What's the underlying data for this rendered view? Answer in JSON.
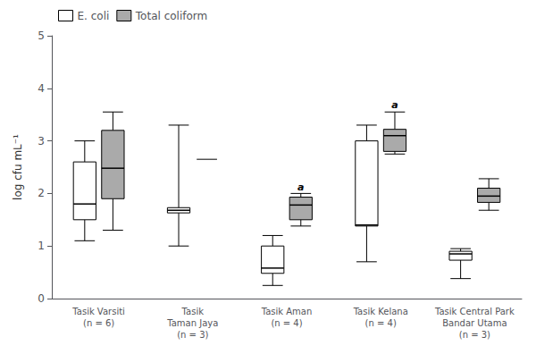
{
  "chart_data": {
    "type": "box",
    "categories": [
      "Tasik Varsiti\n(n = 6)",
      "Tasik\nTaman Jaya\n(n = 3)",
      "Tasik Aman\n(n = 4)",
      "Tasik Kelana\n(n = 4)",
      "Tasik Central Park\nBandar Utama\n(n = 3)"
    ],
    "ylabel": "log cfu mL⁻¹",
    "ylim": [
      0,
      5
    ],
    "yticks": [
      0,
      1,
      2,
      3,
      4,
      5
    ],
    "grid": false,
    "legend": "upper left",
    "series": [
      {
        "name": "E. coli",
        "color": "#ffffff",
        "values": [
          {
            "whislo": 1.1,
            "q1": 1.5,
            "med": 1.8,
            "q3": 2.6,
            "whishi": 3.0
          },
          {
            "whislo": 1.0,
            "q1": 1.63,
            "med": 1.68,
            "q3": 1.73,
            "whishi": 3.3
          },
          {
            "whislo": 0.25,
            "q1": 0.48,
            "med": 0.58,
            "q3": 1.0,
            "whishi": 1.2
          },
          {
            "whislo": 0.7,
            "q1": 1.38,
            "med": 1.4,
            "q3": 3.0,
            "whishi": 3.3
          },
          {
            "whislo": 0.38,
            "q1": 0.73,
            "med": 0.85,
            "q3": 0.9,
            "whishi": 0.95
          }
        ]
      },
      {
        "name": "Total coliform",
        "color": "#aaaaaa",
        "values": [
          {
            "whislo": 1.3,
            "q1": 1.9,
            "med": 2.48,
            "q3": 3.2,
            "whishi": 3.55
          },
          {
            "whislo": null,
            "q1": null,
            "med": 2.65,
            "q3": null,
            "whishi": null
          },
          {
            "whislo": 1.38,
            "q1": 1.5,
            "med": 1.78,
            "q3": 1.93,
            "whishi": 2.0
          },
          {
            "whislo": 2.75,
            "q1": 2.8,
            "med": 3.1,
            "q3": 3.22,
            "whishi": 3.55
          },
          {
            "whislo": 1.68,
            "q1": 1.83,
            "med": 1.95,
            "q3": 2.1,
            "whishi": 2.28
          }
        ]
      }
    ],
    "annotations": [
      {
        "text": "a",
        "series": "Total coliform",
        "category": "Tasik Aman\n(n = 4)",
        "y": 2.03
      },
      {
        "text": "a",
        "series": "Total coliform",
        "category": "Tasik Kelana\n(n = 4)",
        "y": 3.58
      }
    ]
  }
}
